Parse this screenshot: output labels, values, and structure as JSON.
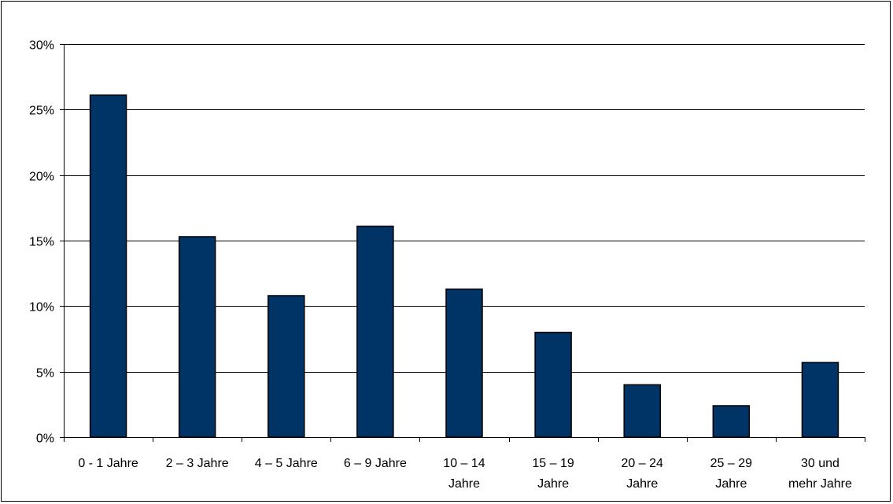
{
  "chart_data": {
    "type": "bar",
    "title": "",
    "xlabel": "",
    "ylabel": "",
    "categories": [
      [
        "0 - 1 Jahre"
      ],
      [
        "2 – 3 Jahre"
      ],
      [
        "4 – 5 Jahre"
      ],
      [
        "6 – 9 Jahre"
      ],
      [
        "10 – 14",
        "Jahre"
      ],
      [
        "15 – 19",
        "Jahre"
      ],
      [
        "20 – 24",
        "Jahre"
      ],
      [
        "25 – 29",
        "Jahre"
      ],
      [
        "30 und",
        "mehr Jahre"
      ]
    ],
    "values": [
      26.1,
      15.3,
      10.8,
      16.1,
      11.3,
      8.0,
      4.0,
      2.4,
      5.7
    ],
    "ylim": [
      0,
      30
    ],
    "yticks": [
      0,
      5,
      10,
      15,
      20,
      25,
      30
    ],
    "ytick_labels": [
      "0%",
      "5%",
      "10%",
      "15%",
      "20%",
      "25%",
      "30%"
    ],
    "grid": true,
    "legend": "none",
    "bar_color": "#003366",
    "bar_edge_color": "#000000",
    "gridline_color": "#000000"
  }
}
